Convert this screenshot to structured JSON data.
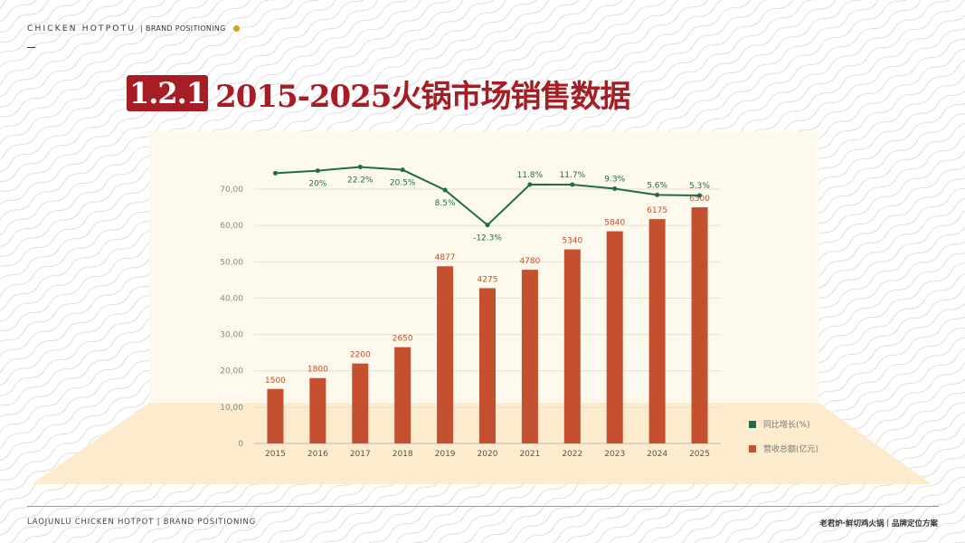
{
  "header": {
    "brand": "CHICKEN HOTPOTU",
    "section": "| BRAND POSITIONING"
  },
  "title": {
    "number": "1.2.1",
    "text": "2015-2025火锅市场销售数据"
  },
  "chart_data": {
    "type": "bar+line",
    "categories": [
      "2015",
      "2016",
      "2017",
      "2018",
      "2019",
      "2020",
      "2021",
      "2022",
      "2023",
      "2024",
      "2025"
    ],
    "series": [
      {
        "name": "营收总额(亿元)",
        "type": "bar",
        "color": "#c4502f",
        "values": [
          1500,
          1800,
          2200,
          2650,
          4877,
          4275,
          4780,
          5340,
          5840,
          6175,
          6500
        ],
        "labels": [
          "1500",
          "1800",
          "2200",
          "2650",
          "4877",
          "4275",
          "4780",
          "5340",
          "5840",
          "6175",
          "6500"
        ]
      },
      {
        "name": "同比增长(%)",
        "type": "line",
        "color": "#1e6b4e",
        "values": [
          18.5,
          20,
          22.2,
          20.5,
          8.5,
          -12.3,
          11.8,
          11.7,
          9.3,
          5.6,
          5.3
        ],
        "labels": [
          "",
          "20%",
          "22.2%",
          "20.5%",
          "8.5%",
          "-12.3%",
          "11.8%",
          "11.7%",
          "9.3%",
          "5.6%",
          "5.3%"
        ]
      }
    ],
    "yticks": [
      "0",
      "10,00",
      "20,00",
      "30,00",
      "40,00",
      "50,00",
      "60,00",
      "70,00"
    ],
    "ylim": [
      0,
      70
    ],
    "grid": true,
    "legend_position": "bottom-right"
  },
  "legend": {
    "growth": "同比增长(%)",
    "revenue": "营收总额(亿元)"
  },
  "footer": {
    "left": "LAOJUNLU CHICKEN HOTPOT | BRAND POSITIONING",
    "right": "老君炉·鲜切鸡火锅｜品牌定位方案"
  }
}
